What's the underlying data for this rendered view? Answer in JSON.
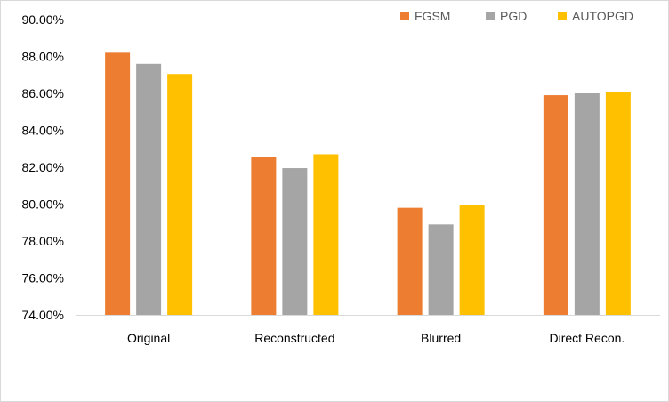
{
  "chart_data": {
    "type": "bar",
    "title": "",
    "xlabel": "",
    "ylabel": "",
    "categories": [
      "Original",
      "Reconstructed",
      "Blurred",
      "Direct Recon."
    ],
    "series": [
      {
        "name": "FGSM",
        "color": "#ED7D31",
        "values": [
          88.2,
          82.55,
          79.8,
          85.9
        ]
      },
      {
        "name": "PGD",
        "color": "#A5A5A5",
        "values": [
          87.6,
          81.95,
          78.9,
          86.0
        ]
      },
      {
        "name": "AUTOPGD",
        "color": "#FFC000",
        "values": [
          87.05,
          82.7,
          79.95,
          86.05
        ]
      }
    ],
    "ylim": [
      74,
      90
    ],
    "yticks": [
      "74.00%",
      "76.00%",
      "78.00%",
      "80.00%",
      "82.00%",
      "84.00%",
      "86.00%",
      "88.00%",
      "90.00%"
    ],
    "ytick_values": [
      74,
      76,
      78,
      80,
      82,
      84,
      86,
      88,
      90
    ],
    "grid": false,
    "legend_position": "top-right"
  }
}
